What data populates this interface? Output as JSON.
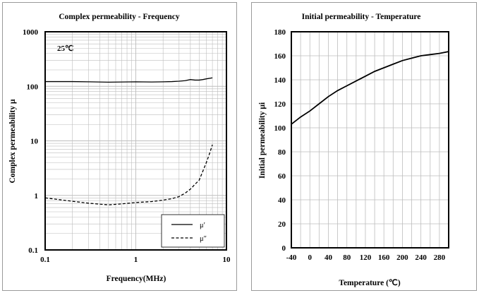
{
  "chart_data": [
    {
      "type": "line",
      "title": "Complex permeability - Frequency",
      "xlabel": "Frequency(MHz)",
      "ylabel": "Complex permeability μ",
      "annotation": "25℃",
      "x_scale": "log",
      "y_scale": "log",
      "xlim": [
        0.1,
        10
      ],
      "ylim": [
        0.1,
        1000
      ],
      "x_ticks": [
        "0.1",
        "1",
        "10"
      ],
      "y_ticks": [
        "0.1",
        "1",
        "10",
        "100",
        "1000"
      ],
      "grid": true,
      "legend_position": "bottom-right",
      "series": [
        {
          "name": "μ′",
          "style": "solid",
          "x": [
            0.1,
            0.2,
            0.3,
            0.5,
            0.7,
            1.0,
            1.5,
            2.0,
            2.5,
            3.0,
            3.5,
            4.0,
            4.5,
            5.0,
            5.5,
            6.0,
            7.0
          ],
          "y": [
            122,
            122,
            121,
            119,
            120,
            121,
            120,
            121,
            122,
            124,
            127,
            133,
            130,
            130,
            133,
            137,
            143
          ]
        },
        {
          "name": "μ″",
          "style": "dashed",
          "x": [
            0.1,
            0.2,
            0.3,
            0.5,
            0.7,
            1.0,
            1.5,
            2.0,
            2.5,
            3.0,
            3.5,
            4.0,
            4.5,
            5.0,
            5.5,
            6.0,
            6.5,
            7.0
          ],
          "y": [
            0.9,
            0.78,
            0.72,
            0.67,
            0.7,
            0.74,
            0.77,
            0.82,
            0.87,
            0.95,
            1.1,
            1.3,
            1.6,
            1.9,
            2.8,
            4.0,
            5.8,
            8.5
          ]
        }
      ]
    },
    {
      "type": "line",
      "title": "Initial permeability - Temperature",
      "xlabel": "Temperature (℃)",
      "ylabel": "Initial permeability μi",
      "xlim": [
        -40,
        300
      ],
      "ylim": [
        0,
        180
      ],
      "x_ticks": [
        "-40",
        "0",
        "40",
        "80",
        "120",
        "160",
        "200",
        "240",
        "280"
      ],
      "y_ticks": [
        "0",
        "20",
        "40",
        "60",
        "80",
        "100",
        "120",
        "140",
        "160",
        "180"
      ],
      "grid": true,
      "series": [
        {
          "style": "solid",
          "x": [
            -40,
            -20,
            0,
            20,
            40,
            60,
            80,
            100,
            120,
            140,
            160,
            180,
            200,
            220,
            240,
            260,
            280,
            300
          ],
          "y": [
            103,
            109,
            114,
            120,
            126,
            131,
            135,
            139,
            143,
            147,
            150,
            153,
            156,
            158,
            160,
            161,
            162,
            163.5
          ]
        }
      ]
    }
  ],
  "colors": {
    "line": "#000000",
    "grid": "#bdbdbd",
    "frame": "#000000",
    "panel_border": "#9a9a9a"
  }
}
